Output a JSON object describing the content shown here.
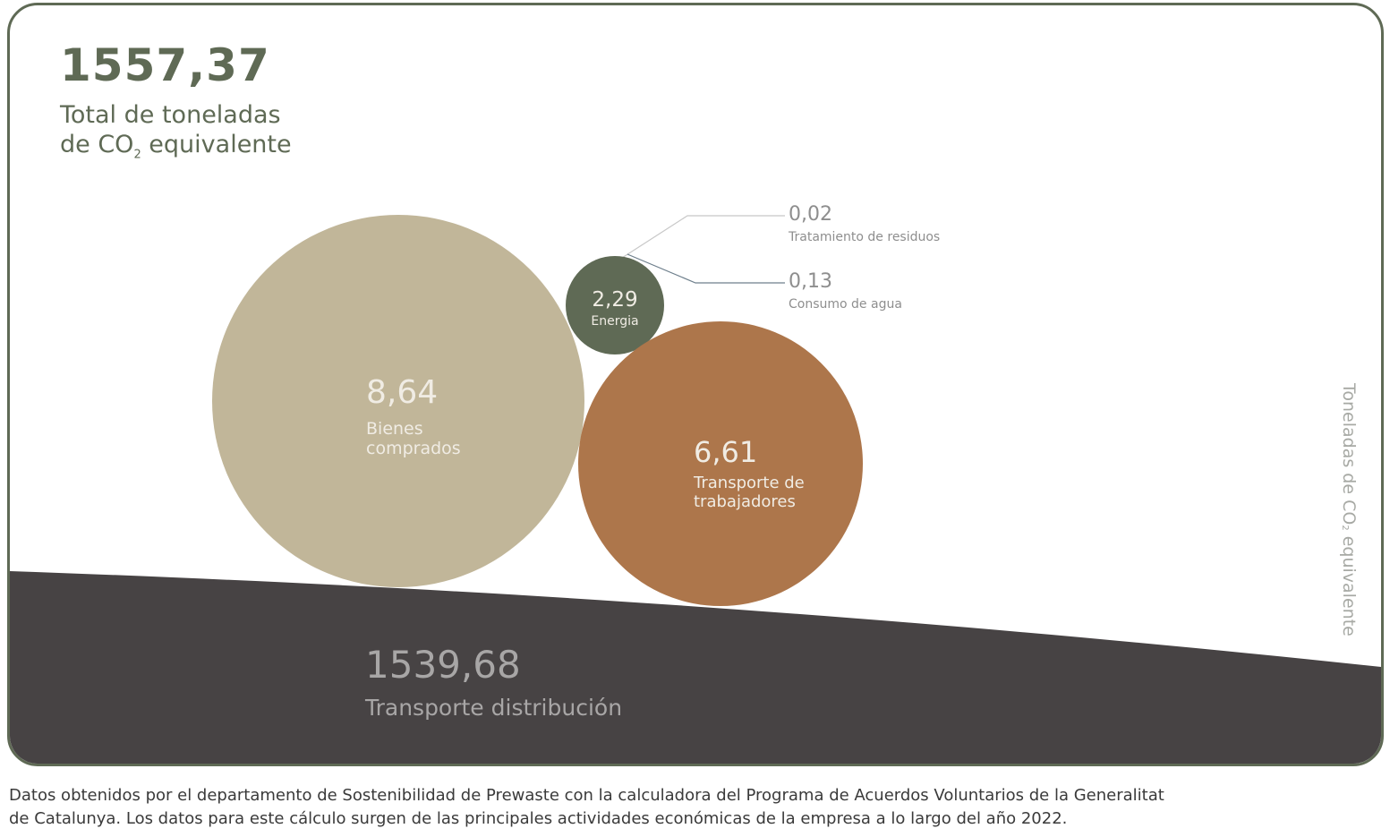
{
  "chart_data": {
    "type": "bubble",
    "title": {
      "value": "1557,37",
      "label_line1": "Total de toneladas",
      "label_line2_prefix": "de CO",
      "label_line2_sub": "2",
      "label_line2_suffix": " equivalente"
    },
    "axis_label": {
      "prefix": "Toneladas de CO",
      "sub": "2",
      "suffix": " equivalente"
    },
    "categories": [
      "Bienes comprados",
      "Energia",
      "Transporte de trabajadores",
      "Transporte distribución",
      "Tratamiento de residuos",
      "Consumo de agua"
    ],
    "values": [
      8.64,
      2.29,
      6.61,
      1539.68,
      0.02,
      0.13
    ],
    "bubbles": [
      {
        "id": "bienes",
        "value": 8.64,
        "value_label": "8,64",
        "label_lines": [
          "Bienes",
          "comprados"
        ],
        "color": "#c1b699"
      },
      {
        "id": "energia",
        "value": 2.29,
        "value_label": "2,29",
        "label_lines": [
          "Energia"
        ],
        "color": "#5f6a55"
      },
      {
        "id": "trabajadores",
        "value": 6.61,
        "value_label": "6,61",
        "label_lines": [
          "Transporte de",
          "trabajadores"
        ],
        "color": "#ad764b"
      }
    ],
    "area": {
      "value": 1539.68,
      "value_label": "1539,68",
      "label": "Transporte distribución",
      "color": "#474344"
    },
    "callouts": [
      {
        "value": 0.02,
        "value_label": "0,02",
        "label": "Tratamiento de residuos",
        "line_color": "#c8c8c8"
      },
      {
        "value": 0.13,
        "value_label": "0,13",
        "label": "Consumo de agua",
        "line_color": "#6e7f8c"
      }
    ],
    "text_colors": {
      "bubble_text": "#f0ece4",
      "area_text": "#a8a6a6",
      "callout_text": "#8e8e8e"
    }
  },
  "footer": {
    "line1": "Datos obtenidos por el departamento de Sostenibilidad de Prewaste con la calculadora del Programa de Acuerdos Voluntarios de la Generalitat",
    "line2": "de Catalunya. Los datos para este cálculo surgen de las principales actividades económicas de la empresa a lo largo del año 2022."
  }
}
